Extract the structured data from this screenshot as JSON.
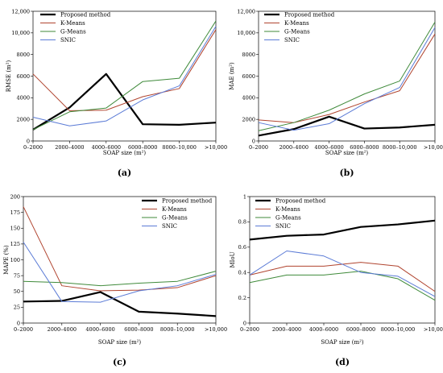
{
  "chart_data": [
    {
      "type": "line",
      "panel_label": "(a)",
      "ylabel": "RMSE (m²)",
      "xlabel": "SOAP size (m²)",
      "ylim": [
        0,
        12000
      ],
      "yticks": [
        "0",
        "2000",
        "4000",
        "6000",
        "8000",
        "10,000",
        "12,000"
      ],
      "categories": [
        "0–2000",
        "2000–4000",
        "4000–6000",
        "6000–8000",
        "8000–10,000",
        ">10,000"
      ],
      "legend_position": "top-left",
      "series": [
        {
          "name": "Proposed method",
          "color": "#000000",
          "values": [
            1050,
            3100,
            6200,
            1550,
            1500,
            1700
          ]
        },
        {
          "name": "K-Means",
          "color": "#b0442f",
          "values": [
            6200,
            2800,
            2850,
            4100,
            4850,
            10300
          ]
        },
        {
          "name": "G-Means",
          "color": "#3f8a3a",
          "values": [
            1050,
            2700,
            3050,
            5500,
            5800,
            11100
          ]
        },
        {
          "name": "SNIC",
          "color": "#5b7bd6",
          "values": [
            2200,
            1400,
            1850,
            3800,
            5100,
            10600
          ]
        }
      ]
    },
    {
      "type": "line",
      "panel_label": "(b)",
      "ylabel": "MAE (m²)",
      "xlabel": "SOAP size (m²)",
      "ylim": [
        0,
        12000
      ],
      "yticks": [
        "0",
        "2000",
        "4000",
        "6000",
        "8000",
        "10,000",
        "12,000"
      ],
      "categories": [
        "0–2000",
        "2000–4000",
        "4000–6000",
        "6000–8000",
        "8000–10,000",
        ">10,000"
      ],
      "legend_position": "top-left",
      "series": [
        {
          "name": "Proposed method",
          "color": "#000000",
          "values": [
            500,
            1100,
            2250,
            1150,
            1250,
            1500
          ]
        },
        {
          "name": "K-Means",
          "color": "#b0442f",
          "values": [
            1950,
            1700,
            2450,
            3600,
            4650,
            9900
          ]
        },
        {
          "name": "G-Means",
          "color": "#3f8a3a",
          "values": [
            950,
            1700,
            2850,
            4350,
            5550,
            11000
          ]
        },
        {
          "name": "SNIC",
          "color": "#5b7bd6",
          "values": [
            1700,
            1000,
            1600,
            3450,
            4950,
            10500
          ]
        }
      ]
    },
    {
      "type": "line",
      "panel_label": "(c)",
      "ylabel": "MAPE (%)",
      "xlabel": "SOAP size (m²)",
      "ylim": [
        0,
        200
      ],
      "yticks": [
        "0",
        "25",
        "50",
        "75",
        "100",
        "125",
        "150",
        "175",
        "200"
      ],
      "categories": [
        "0–2000",
        "2000–4000",
        "4000–6000",
        "6000–8000",
        "8000–10,000",
        ">10,000"
      ],
      "legend_position": "top-right",
      "series": [
        {
          "name": "Proposed method",
          "color": "#000000",
          "values": [
            34,
            35,
            49,
            18,
            15,
            11
          ]
        },
        {
          "name": "K-Means",
          "color": "#b0442f",
          "values": [
            184,
            59,
            51,
            52,
            56,
            75
          ]
        },
        {
          "name": "G-Means",
          "color": "#3f8a3a",
          "values": [
            66,
            64,
            59,
            63,
            66,
            82
          ]
        },
        {
          "name": "SNIC",
          "color": "#5b7bd6",
          "values": [
            128,
            34,
            33,
            51,
            59,
            77
          ]
        }
      ]
    },
    {
      "type": "line",
      "panel_label": "(d)",
      "ylabel": "MIoU",
      "xlabel": "SOAP size (m²)",
      "ylim": [
        0,
        1
      ],
      "yticks": [
        "0",
        "0.2",
        "0.4",
        "0.6",
        "0.8",
        "1"
      ],
      "categories": [
        "0–2000",
        "2000–4000",
        "4000–6000",
        "6000–8000",
        "8000–10,000",
        ">10,000"
      ],
      "legend_position": "top-left",
      "series": [
        {
          "name": "Proposed method",
          "color": "#000000",
          "values": [
            0.66,
            0.69,
            0.7,
            0.76,
            0.78,
            0.81
          ]
        },
        {
          "name": "K-Means",
          "color": "#b0442f",
          "values": [
            0.38,
            0.45,
            0.45,
            0.48,
            0.45,
            0.25
          ]
        },
        {
          "name": "G-Means",
          "color": "#3f8a3a",
          "values": [
            0.32,
            0.38,
            0.38,
            0.41,
            0.35,
            0.18
          ]
        },
        {
          "name": "SNIC",
          "color": "#5b7bd6",
          "values": [
            0.38,
            0.57,
            0.53,
            0.4,
            0.37,
            0.21
          ]
        }
      ]
    }
  ]
}
